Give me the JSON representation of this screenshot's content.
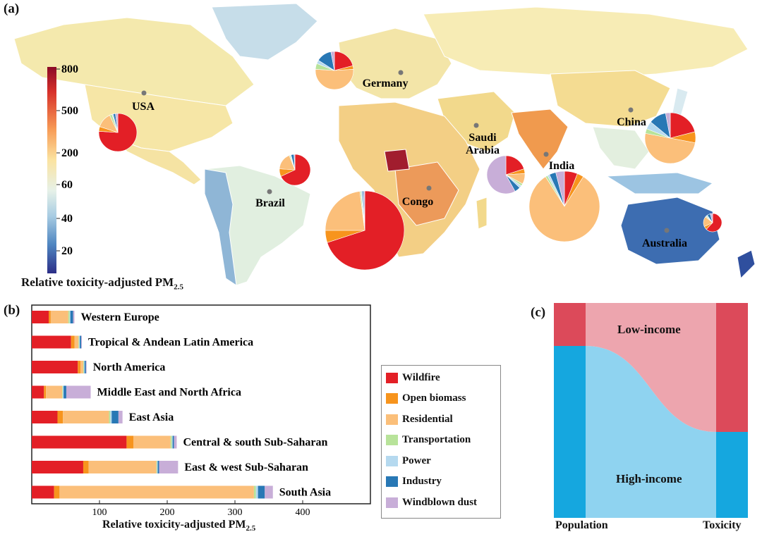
{
  "panel_a": {
    "label": "(a)",
    "colorbar": {
      "ticks": [
        "800",
        "500",
        "200",
        "60",
        "40",
        "20"
      ],
      "title_main": "Relative toxicity-adjusted PM",
      "title_sub": "2.5"
    },
    "countries": [
      {
        "name": "USA",
        "value_level": "high"
      },
      {
        "name": "Germany",
        "value_level": "mid"
      },
      {
        "name": "Brazil",
        "value_level": "low"
      },
      {
        "name": "Saudi",
        "line2": "Arabia",
        "value_level": "mid"
      },
      {
        "name": "India",
        "value_level": "high"
      },
      {
        "name": "China",
        "value_level": "mid"
      },
      {
        "name": "Congo",
        "value_level": "high"
      },
      {
        "name": "Australia",
        "value_level": "very-low"
      }
    ]
  },
  "panel_b": {
    "label": "(b)",
    "xlabel_main": "Relative toxicity-adjusted PM",
    "xlabel_sub": "2.5",
    "x_ticks": [
      "100",
      "200",
      "300",
      "400"
    ]
  },
  "panel_c": {
    "label": "(c)",
    "low_income": "Low-income",
    "high_income": "High-income",
    "col_population": "Population",
    "col_toxicity": "Toxicity",
    "colors": {
      "low_dark": "#dc4a5a",
      "low_light": "#eda5ae",
      "high_dark": "#15a7df",
      "high_light": "#8fd3f0"
    }
  },
  "legend": {
    "items": [
      {
        "label": "Wildfire",
        "color": "#e31f26"
      },
      {
        "label": "Open biomass",
        "color": "#f7941d"
      },
      {
        "label": "Residential",
        "color": "#fbbf7a"
      },
      {
        "label": "Transportation",
        "color": "#b8e39a"
      },
      {
        "label": "Power",
        "color": "#b5d9ef"
      },
      {
        "label": "Industry",
        "color": "#2878b5"
      },
      {
        "label": "Windblown dust",
        "color": "#c8aed8"
      }
    ]
  },
  "chart_data": [
    {
      "type": "bar",
      "orientation": "horizontal",
      "stacked": true,
      "xlabel": "Relative toxicity-adjusted PM2.5",
      "xlim": [
        0,
        500
      ],
      "categories": [
        "Western Europe",
        "Tropical & Andean Latin America",
        "North America",
        "Middle East and North Africa",
        "East Asia",
        "Central & south Sub-Saharan",
        "East & west Sub-Saharan",
        "South Asia"
      ],
      "series": [
        {
          "name": "Wildfire",
          "values": [
            25,
            58,
            68,
            18,
            38,
            140,
            76,
            33
          ]
        },
        {
          "name": "Open biomass",
          "values": [
            3,
            5,
            4,
            3,
            8,
            10,
            8,
            8
          ]
        },
        {
          "name": "Residential",
          "values": [
            26,
            6,
            4,
            24,
            68,
            55,
            100,
            287
          ]
        },
        {
          "name": "Transportation",
          "values": [
            2,
            1,
            1,
            1,
            2,
            2,
            1,
            3
          ]
        },
        {
          "name": "Power",
          "values": [
            1,
            1,
            1,
            1,
            2,
            1,
            1,
            3
          ]
        },
        {
          "name": "Industry",
          "values": [
            4,
            2,
            2,
            4,
            10,
            2,
            2,
            10
          ]
        },
        {
          "name": "Windblown dust",
          "values": [
            2,
            1,
            1,
            36,
            6,
            4,
            28,
            12
          ]
        }
      ]
    },
    {
      "type": "pie",
      "title": "USA",
      "categories": [
        "Wildfire",
        "Open biomass",
        "Residential",
        "Transportation",
        "Power",
        "Industry",
        "Windblown dust"
      ],
      "values": [
        76,
        4,
        13,
        2,
        1,
        2,
        2
      ]
    },
    {
      "type": "pie",
      "title": "Germany",
      "categories": [
        "Wildfire",
        "Open biomass",
        "Residential",
        "Transportation",
        "Power",
        "Industry",
        "Windblown dust"
      ],
      "values": [
        21,
        3,
        52,
        5,
        3,
        13,
        3
      ]
    },
    {
      "type": "pie",
      "title": "Brazil",
      "categories": [
        "Wildfire",
        "Open biomass",
        "Residential",
        "Transportation",
        "Power",
        "Industry",
        "Windblown dust"
      ],
      "values": [
        68,
        8,
        18,
        1,
        1,
        3,
        1
      ]
    },
    {
      "type": "pie",
      "title": "Saudi Arabia",
      "categories": [
        "Wildfire",
        "Open biomass",
        "Residential",
        "Transportation",
        "Power",
        "Industry",
        "Windblown dust"
      ],
      "values": [
        20,
        4,
        9,
        2,
        2,
        5,
        58
      ]
    },
    {
      "type": "pie",
      "title": "India",
      "categories": [
        "Wildfire",
        "Open biomass",
        "Residential",
        "Transportation",
        "Power",
        "Industry",
        "Windblown dust"
      ],
      "values": [
        6,
        3,
        82,
        1,
        1,
        3,
        4
      ]
    },
    {
      "type": "pie",
      "title": "China",
      "categories": [
        "Wildfire",
        "Open biomass",
        "Residential",
        "Transportation",
        "Power",
        "Industry",
        "Windblown dust"
      ],
      "values": [
        21,
        7,
        50,
        3,
        5,
        11,
        3
      ]
    },
    {
      "type": "pie",
      "title": "Congo",
      "categories": [
        "Wildfire",
        "Open biomass",
        "Residential",
        "Transportation",
        "Power",
        "Industry",
        "Windblown dust"
      ],
      "values": [
        70,
        5,
        23,
        0.5,
        0.5,
        0.5,
        0.5
      ]
    },
    {
      "type": "pie",
      "title": "Australia",
      "categories": [
        "Wildfire",
        "Open biomass",
        "Residential",
        "Transportation",
        "Power",
        "Industry",
        "Windblown dust"
      ],
      "values": [
        62,
        6,
        18,
        2,
        2,
        6,
        4
      ]
    },
    {
      "type": "sankey",
      "categories": [
        "Population",
        "Toxicity"
      ],
      "series": [
        {
          "name": "Low-income",
          "values": [
            0.2,
            0.6
          ]
        },
        {
          "name": "High-income",
          "values": [
            0.8,
            0.4
          ]
        }
      ]
    }
  ]
}
